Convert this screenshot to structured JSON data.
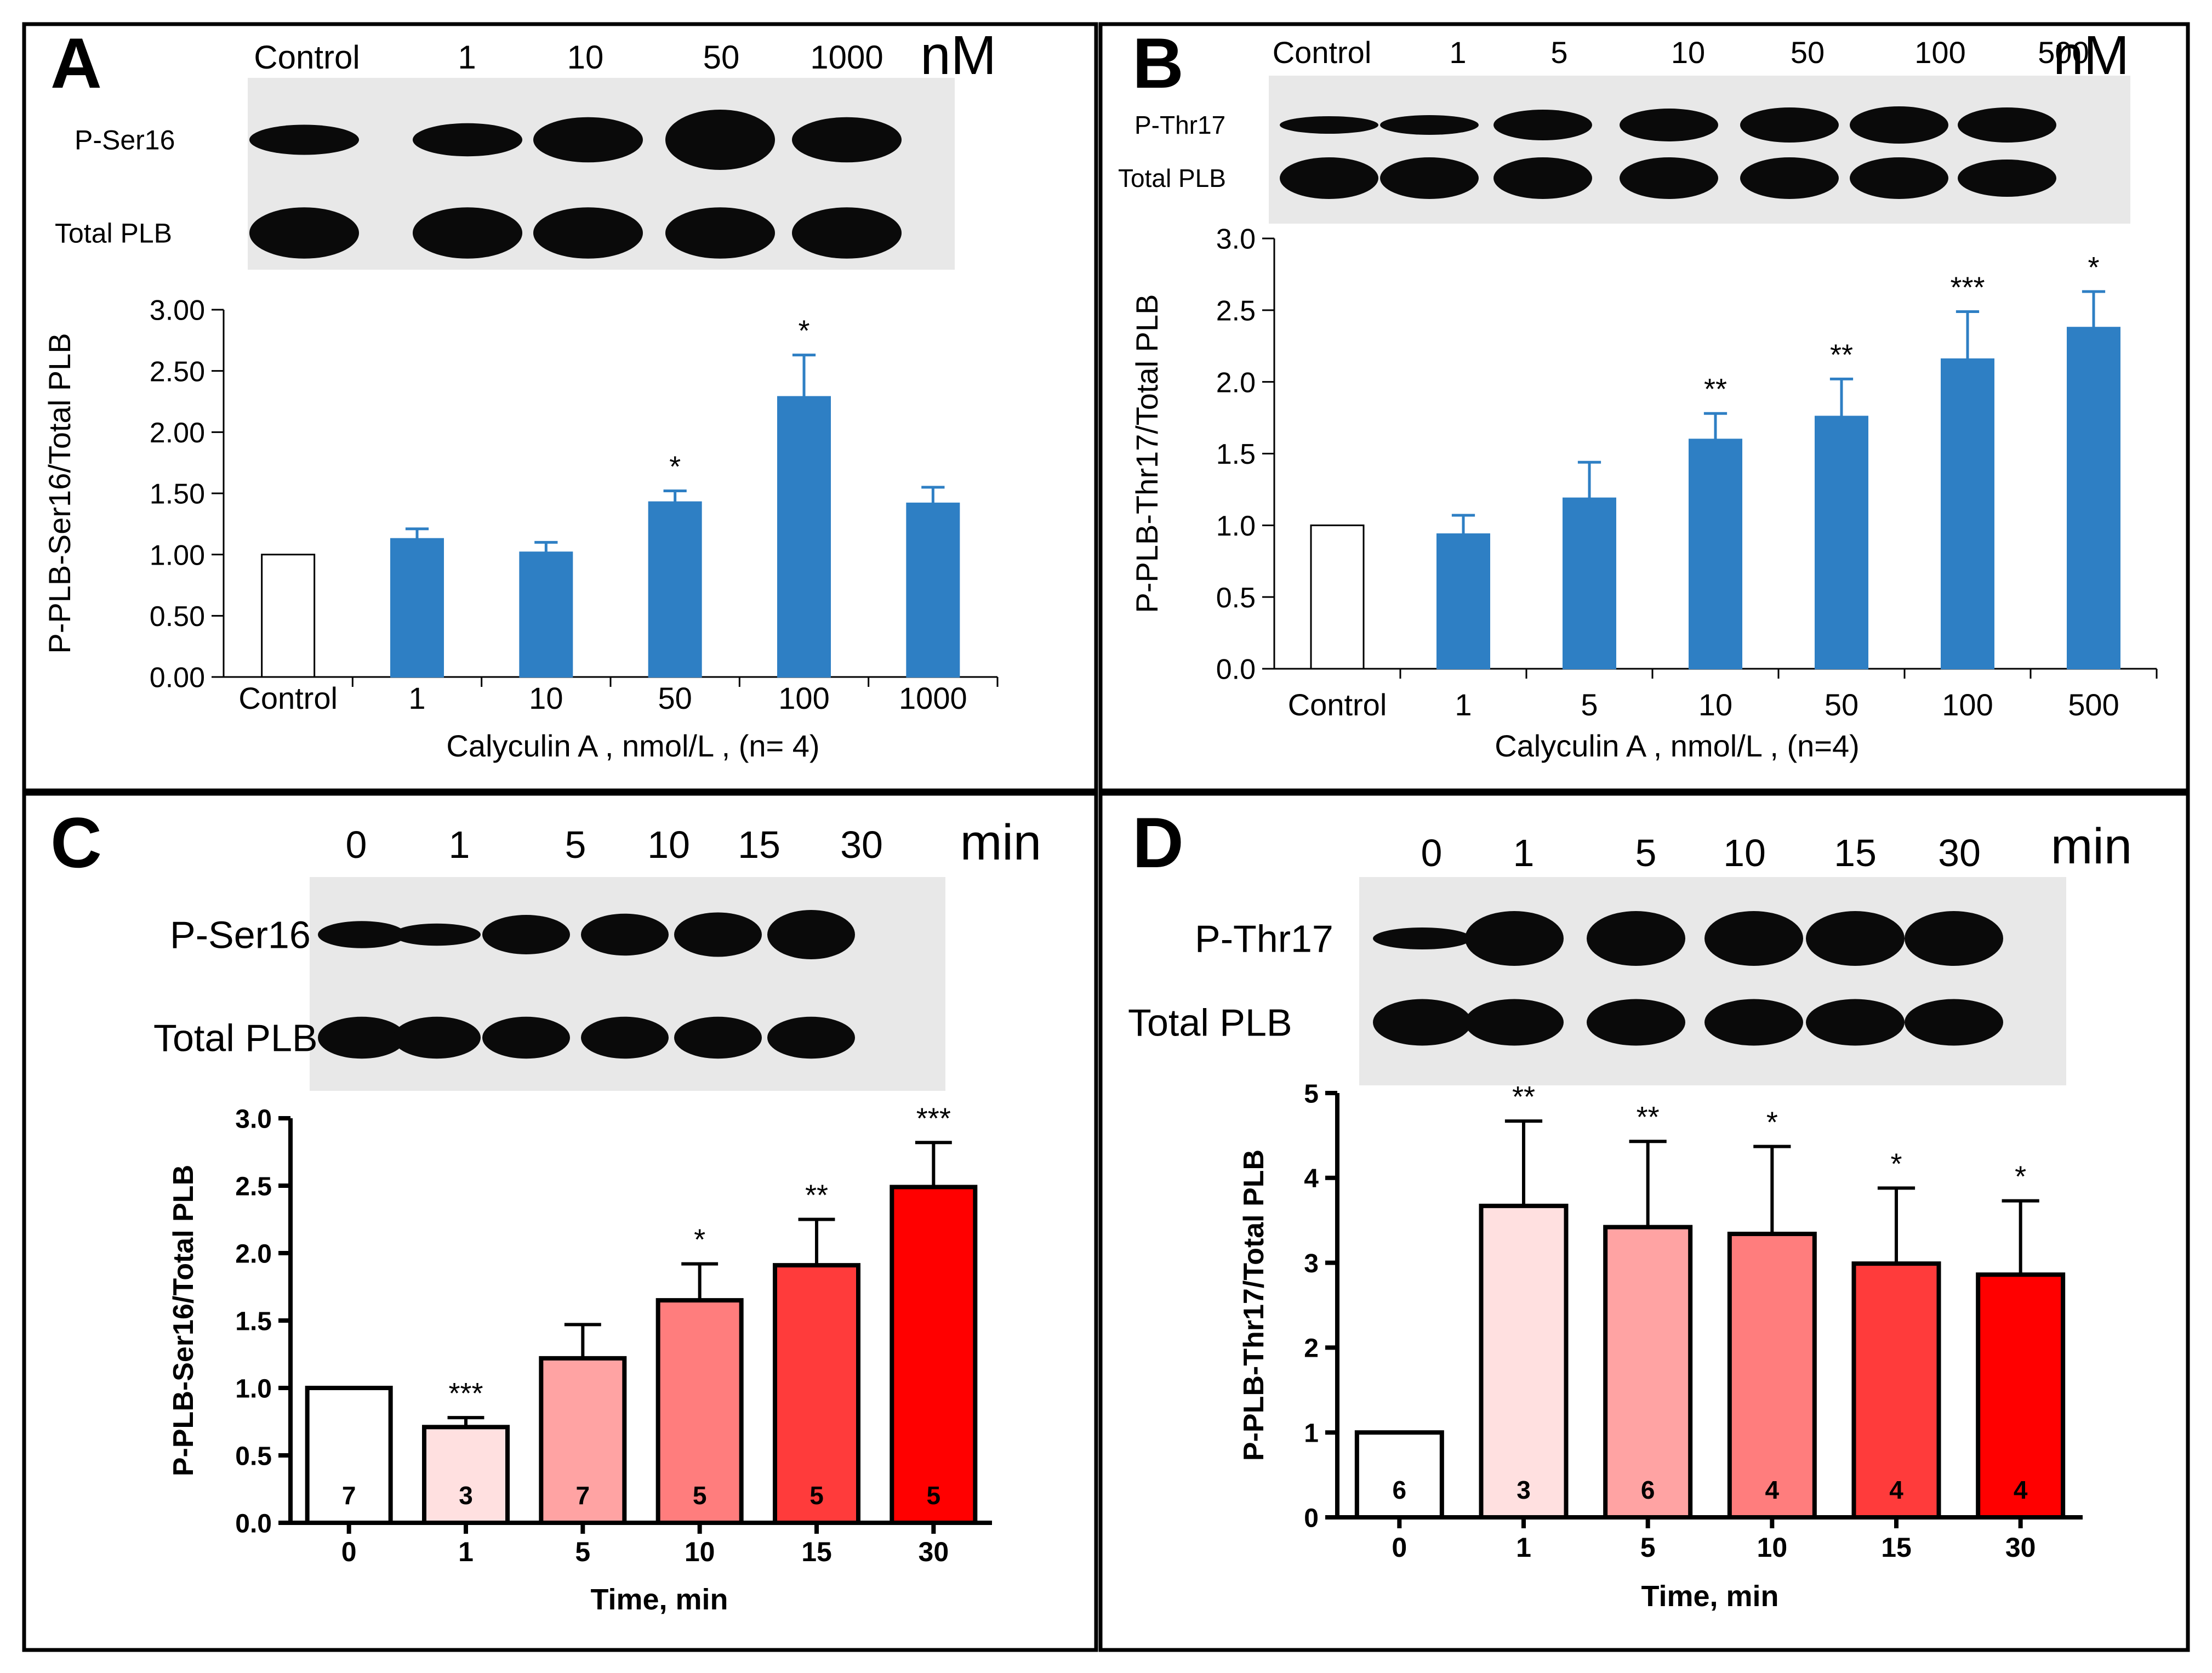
{
  "colors": {
    "blue": "#2e7fc4",
    "white": "#ffffff",
    "pink_lightest": "#ffe0e0",
    "pink_light": "#ffa3a3",
    "pink_medium": "#ff7d7d",
    "red_medium": "#ff3b3b",
    "red": "#ff0000",
    "blot_bg": "#e8e8e8",
    "band": "#0a0a0a"
  },
  "panels": [
    {
      "letter": "A",
      "blot": {
        "lanes": [
          "Control",
          "1",
          "10",
          "50",
          "1000"
        ],
        "unit": "nM",
        "row1_label": "P-Ser16",
        "row2_label": "Total PLB",
        "row1_band_heights": [
          0.5,
          0.55,
          0.75,
          1.0,
          0.75
        ],
        "row2_band_heights": [
          0.85,
          0.85,
          0.85,
          0.85,
          0.85
        ]
      },
      "chart_data": {
        "type": "bar",
        "categories": [
          "Control",
          "1",
          "10",
          "50",
          "100",
          "1000"
        ],
        "values": [
          1.0,
          1.13,
          1.02,
          1.43,
          2.29,
          1.42
        ],
        "errors": [
          0,
          0.08,
          0.08,
          0.09,
          0.34,
          0.13
        ],
        "significance": [
          "",
          "",
          "",
          "*",
          "*",
          ""
        ],
        "ylabel": "P-PLB-Ser16/Total PLB",
        "xlabel": "Calyculin  A , nmol/L , (n= 4)",
        "ylim": [
          0,
          3.0
        ],
        "yticks": [
          "0.00",
          "0.50",
          "1.00",
          "1.50",
          "2.00",
          "2.50",
          "3.00"
        ],
        "bar_colors": [
          "white",
          "blue",
          "blue",
          "blue",
          "blue",
          "blue"
        ]
      }
    },
    {
      "letter": "B",
      "blot": {
        "lanes": [
          "Control",
          "1",
          "5",
          "10",
          "50",
          "100",
          "500"
        ],
        "unit": "nM",
        "row1_label": "P-Thr17",
        "row2_label": "Total PLB",
        "row1_band_heights": [
          0.4,
          0.45,
          0.7,
          0.75,
          0.8,
          0.85,
          0.8
        ],
        "row2_band_heights": [
          0.95,
          0.95,
          0.95,
          0.95,
          0.95,
          0.95,
          0.85
        ]
      },
      "chart_data": {
        "type": "bar",
        "categories": [
          "Control",
          "1",
          "5",
          "10",
          "50",
          "100",
          "500"
        ],
        "values": [
          1.0,
          0.94,
          1.19,
          1.6,
          1.76,
          2.16,
          2.38
        ],
        "errors": [
          0,
          0.13,
          0.25,
          0.18,
          0.26,
          0.33,
          0.25
        ],
        "significance": [
          "",
          "",
          "",
          "**",
          "**",
          "***",
          "*"
        ],
        "ylabel": "P-PLB-Thr17/Total PLB",
        "xlabel": "Calyculin A , nmol/L , (n=4)",
        "ylim": [
          0,
          3.0
        ],
        "yticks": [
          "0.0",
          "0.5",
          "1.0",
          "1.5",
          "2.0",
          "2.5",
          "3.0"
        ],
        "bar_colors": [
          "white",
          "blue",
          "blue",
          "blue",
          "blue",
          "blue",
          "blue"
        ]
      }
    },
    {
      "letter": "C",
      "blot": {
        "lanes": [
          "0",
          "1",
          "5",
          "10",
          "15",
          "30"
        ],
        "unit": "min",
        "row1_label": "P-Ser16",
        "row2_label": "Total PLB",
        "row1_band_heights": [
          0.55,
          0.45,
          0.8,
          0.85,
          0.9,
          1.0
        ],
        "row2_band_heights": [
          0.85,
          0.85,
          0.85,
          0.85,
          0.85,
          0.85
        ]
      },
      "chart_data": {
        "type": "bar",
        "categories": [
          "0",
          "1",
          "5",
          "10",
          "15",
          "30"
        ],
        "values": [
          1.0,
          0.71,
          1.22,
          1.65,
          1.91,
          2.49
        ],
        "errors": [
          0,
          0.07,
          0.25,
          0.27,
          0.34,
          0.33
        ],
        "significance": [
          "",
          "***",
          "",
          "*",
          "**",
          "***"
        ],
        "n_labels": [
          "7",
          "3",
          "7",
          "5",
          "5",
          "5"
        ],
        "ylabel": "P-PLB-Ser16/Total PLB",
        "xlabel": "Time, min",
        "ylim": [
          0,
          3.0
        ],
        "yticks": [
          "0.0",
          "0.5",
          "1.0",
          "1.5",
          "2.0",
          "2.5",
          "3.0"
        ],
        "bar_colors": [
          "white",
          "pink_lightest",
          "pink_light",
          "pink_medium",
          "red_medium",
          "red"
        ]
      }
    },
    {
      "letter": "D",
      "blot": {
        "lanes": [
          "0",
          "1",
          "5",
          "10",
          "15",
          "30"
        ],
        "unit": "min",
        "row1_label": "P-Thr17",
        "row2_label": "Total PLB",
        "row1_band_heights": [
          0.4,
          1.0,
          1.0,
          1.0,
          1.0,
          1.0
        ],
        "row2_band_heights": [
          0.85,
          0.85,
          0.85,
          0.85,
          0.85,
          0.85
        ]
      },
      "chart_data": {
        "type": "bar",
        "categories": [
          "0",
          "1",
          "5",
          "10",
          "15",
          "30"
        ],
        "values": [
          1.0,
          3.67,
          3.42,
          3.34,
          2.99,
          2.86
        ],
        "errors": [
          0,
          1.0,
          1.01,
          1.03,
          0.89,
          0.87
        ],
        "significance": [
          "",
          "**",
          "**",
          "*",
          "*",
          "*"
        ],
        "n_labels": [
          "6",
          "3",
          "6",
          "4",
          "4",
          "4"
        ],
        "ylabel": "P-PLB-Thr17/Total PLB",
        "xlabel": "Time, min",
        "ylim": [
          0,
          5
        ],
        "yticks": [
          "0",
          "1",
          "2",
          "3",
          "4",
          "5"
        ],
        "bar_colors": [
          "white",
          "pink_lightest",
          "pink_light",
          "pink_medium",
          "red_medium",
          "red"
        ]
      }
    }
  ]
}
